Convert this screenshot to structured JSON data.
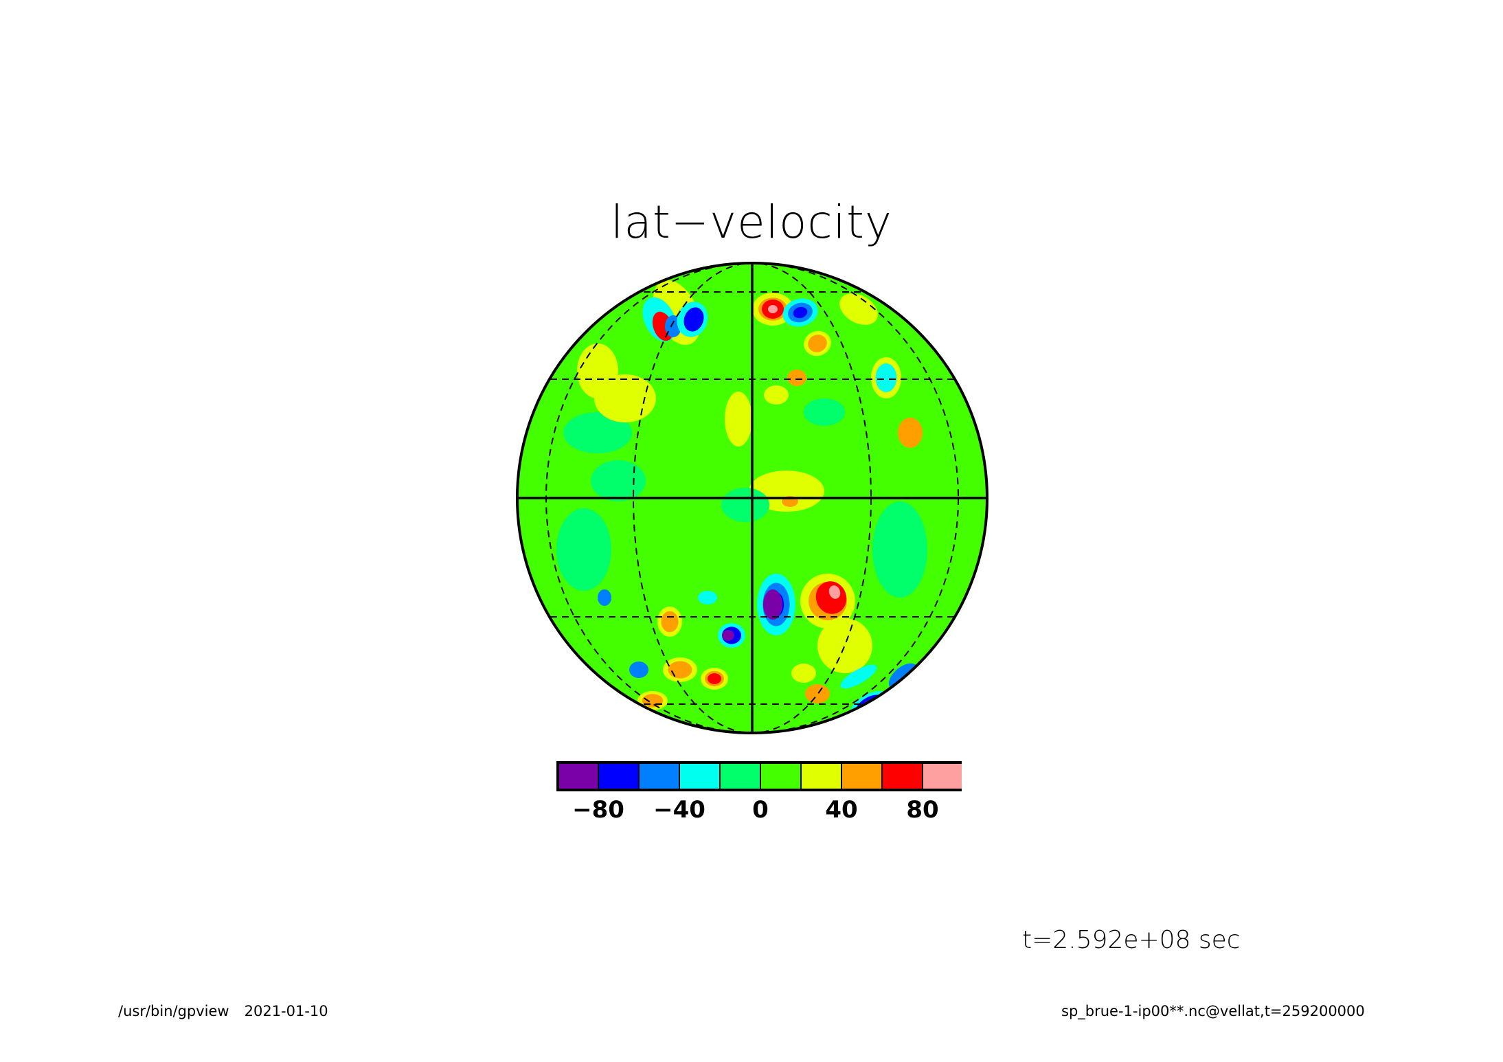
{
  "title": "lat−velocity",
  "time_label": "t=2.592e+08 sec",
  "footer": {
    "program": "/usr/bin/gpview",
    "date": "2021-01-10",
    "source": "sp_brue-1-ip00**.nc@vellat,t=259200000"
  },
  "colorbar": {
    "colors": [
      "#7a00a8",
      "#0000ff",
      "#0080ff",
      "#00ffee",
      "#00ff6a",
      "#44ff00",
      "#e0ff00",
      "#ffa000",
      "#ff0000",
      "#ffa0a0"
    ],
    "tick_labels": [
      "−80",
      "−40",
      "0",
      "40",
      "80"
    ]
  },
  "map": {
    "projection": "orthographic",
    "background_color": "#44ff00",
    "gridlines": "dashed"
  }
}
